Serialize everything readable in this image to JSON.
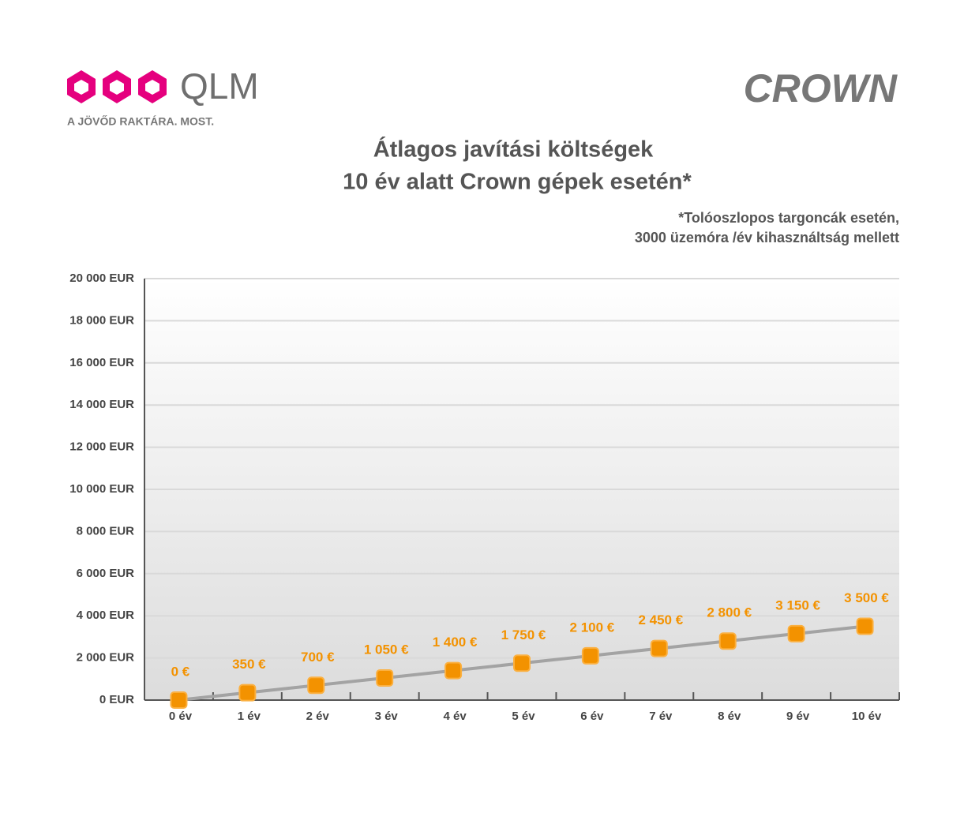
{
  "header": {
    "brand": "QLM",
    "tagline": "A JÖVŐD RAKTÁRA. MOST.",
    "partner": "CROWN"
  },
  "chart_data": {
    "type": "line",
    "title": [
      "Átlagos javítási költségek",
      "10 év alatt Crown gépek esetén*"
    ],
    "subtitle": [
      "*Tolóoszlopos targoncák esetén,",
      "3000 üzemóra /év kihasználtság mellett"
    ],
    "categories": [
      "0 év",
      "1 év",
      "2 év",
      "3 év",
      "4 év",
      "5 év",
      "6 év",
      "7 év",
      "8 év",
      "9 év",
      "10 év"
    ],
    "values": [
      0,
      350,
      700,
      1050,
      1400,
      1750,
      2100,
      2450,
      2800,
      3150,
      3500
    ],
    "value_labels": [
      "0 €",
      "350 €",
      "700 €",
      "1 050 €",
      "1 400 €",
      "1 750 €",
      "2 100 €",
      "2 450 €",
      "2 800 €",
      "3 150 €",
      "3 500 €"
    ],
    "line_color": "#a3a3a3",
    "marker_color": "#f39200",
    "ylim": [
      0,
      20000
    ],
    "yticks": [
      {
        "value": 0,
        "label": "0 EUR"
      },
      {
        "value": 2000,
        "label": "2 000 EUR"
      },
      {
        "value": 4000,
        "label": "4 000 EUR"
      },
      {
        "value": 6000,
        "label": "6 000 EUR"
      },
      {
        "value": 8000,
        "label": "8 000 EUR"
      },
      {
        "value": 10000,
        "label": "10 000 EUR"
      },
      {
        "value": 12000,
        "label": "12 000 EUR"
      },
      {
        "value": 14000,
        "label": "14 000 EUR"
      },
      {
        "value": 16000,
        "label": "16 000 EUR"
      },
      {
        "value": 18000,
        "label": "18 000 EUR"
      },
      {
        "value": 20000,
        "label": "20 000 EUR"
      }
    ],
    "grid": true
  }
}
